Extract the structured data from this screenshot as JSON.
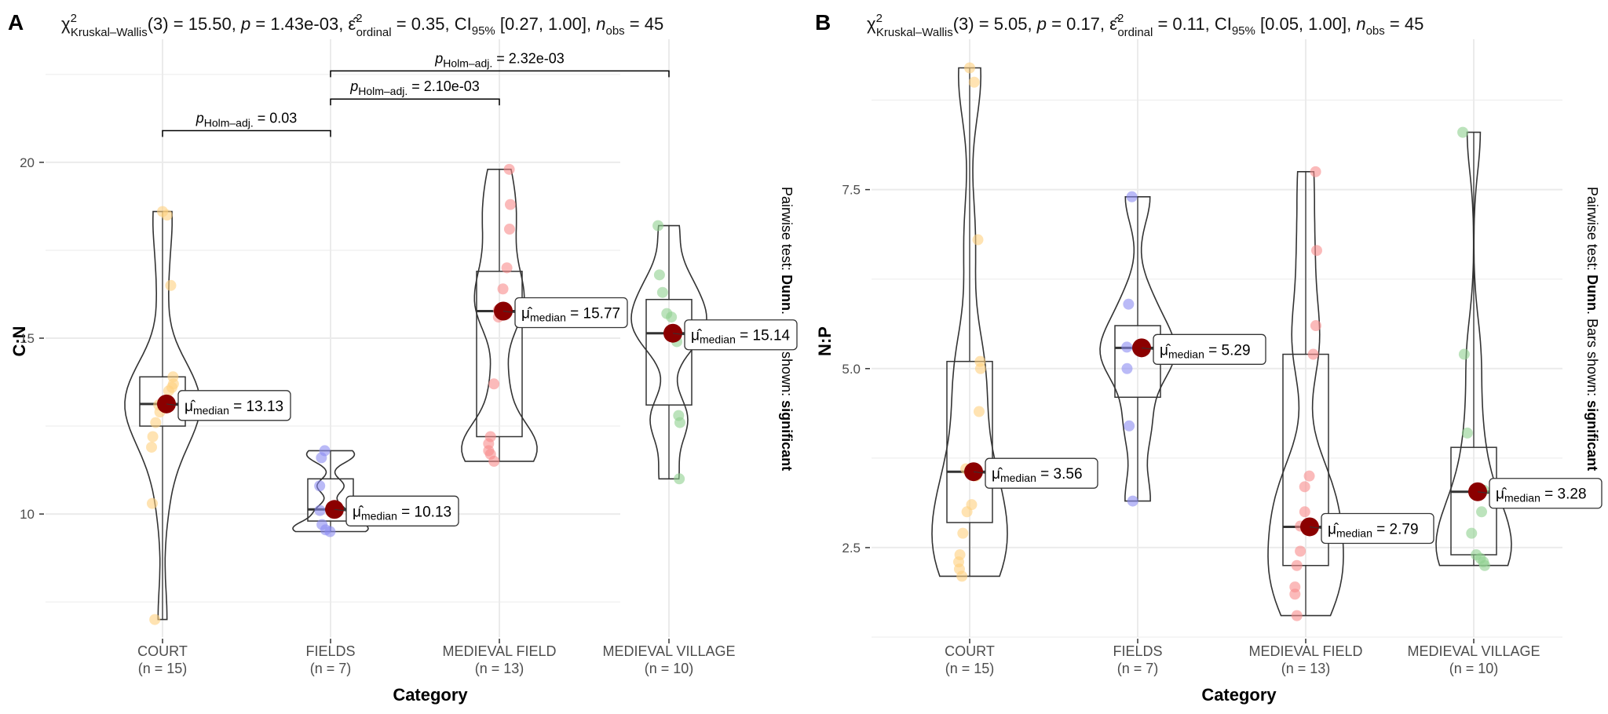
{
  "colors": {
    "grid": "#ebebeb",
    "court": "#ffd17f",
    "fields": "#8c8cf2",
    "medieval_field": "#f88c8c",
    "medieval_village": "#8fd08f",
    "median_dot": "#8b0000",
    "outline": "#333333"
  },
  "side_label": {
    "prefix": "Pairwise test: ",
    "test": "Dunn",
    "mid": ". Bars shown: ",
    "shown": "significant"
  },
  "chart_data": [
    {
      "type": "violin",
      "panel": "A",
      "title": {
        "statistic": "15.50",
        "df": "3",
        "p": "1.43e-03",
        "effect": "0.35",
        "ci": "[0.27, 1.00]",
        "n_obs": "45"
      },
      "xlabel": "Category",
      "ylabel": "C:N",
      "ylim": [
        6.5,
        23.5
      ],
      "yticks": [
        10,
        15,
        20
      ],
      "categories": [
        "COURT",
        "FIELDS",
        "MEDIEVAL FIELD",
        "MEDIEVAL VILLAGE"
      ],
      "n_labels": [
        "(n = 15)",
        "(n = 7)",
        "(n = 13)",
        "(n = 10)"
      ],
      "series": [
        {
          "category": "COURT",
          "color_key": "court",
          "median": 13.13,
          "median_label": "13.13",
          "q1": 12.5,
          "q3": 13.9,
          "min": 7.0,
          "max": 18.6,
          "points": [
            18.6,
            18.5,
            16.5,
            13.9,
            13.7,
            13.6,
            13.5,
            13.2,
            12.9,
            12.6,
            12.2,
            11.9,
            10.3,
            7.0,
            13.1
          ]
        },
        {
          "category": "FIELDS",
          "color_key": "fields",
          "median": 10.13,
          "median_label": "10.13",
          "q1": 9.8,
          "q3": 11.0,
          "min": 9.5,
          "max": 11.8,
          "points": [
            11.8,
            11.6,
            10.8,
            10.1,
            9.7,
            9.55,
            9.5
          ]
        },
        {
          "category": "MEDIEVAL FIELD",
          "color_key": "medieval_field",
          "median": 15.77,
          "median_label": "15.77",
          "q1": 12.2,
          "q3": 16.9,
          "min": 11.5,
          "max": 19.8,
          "points": [
            19.8,
            18.8,
            18.1,
            17.0,
            16.4,
            15.8,
            13.7,
            12.2,
            12.0,
            11.8,
            11.7,
            11.5,
            15.6
          ]
        },
        {
          "category": "MEDIEVAL VILLAGE",
          "color_key": "medieval_village",
          "median": 15.14,
          "median_label": "15.14",
          "q1": 13.1,
          "q3": 16.1,
          "min": 11.0,
          "max": 18.2,
          "points": [
            18.2,
            16.8,
            16.3,
            15.7,
            15.6,
            15.1,
            12.8,
            12.6,
            11.0,
            14.9
          ]
        }
      ],
      "pairwise": [
        {
          "from": 0,
          "to": 1,
          "y": 20.9,
          "p": "0.03"
        },
        {
          "from": 1,
          "to": 2,
          "y": 21.8,
          "p": "2.10e-03"
        },
        {
          "from": 1,
          "to": 3,
          "y": 22.6,
          "p": "2.32e-03"
        }
      ]
    },
    {
      "type": "violin",
      "panel": "B",
      "title": {
        "statistic": "5.05",
        "df": "3",
        "p": "0.17",
        "effect": "0.11",
        "ci": "[0.05, 1.00]",
        "n_obs": "45"
      },
      "xlabel": "Category",
      "ylabel": "N:P",
      "ylim": [
        1.25,
        9.6
      ],
      "yticks": [
        2.5,
        5.0,
        7.5
      ],
      "ytick_labels": [
        "2.5",
        "5.0",
        "7.5"
      ],
      "categories": [
        "COURT",
        "FIELDS",
        "MEDIEVAL FIELD",
        "MEDIEVAL VILLAGE"
      ],
      "n_labels": [
        "(n = 15)",
        "(n = 7)",
        "(n = 13)",
        "(n = 10)"
      ],
      "series": [
        {
          "category": "COURT",
          "color_key": "court",
          "median": 3.56,
          "median_label": "3.56",
          "q1": 2.85,
          "q3": 5.1,
          "min": 2.1,
          "max": 9.2,
          "points": [
            9.2,
            9.0,
            6.8,
            5.1,
            5.0,
            4.4,
            3.5,
            3.1,
            3.0,
            2.7,
            2.4,
            2.3,
            2.2,
            2.1,
            3.6
          ]
        },
        {
          "category": "FIELDS",
          "color_key": "fields",
          "median": 5.29,
          "median_label": "5.29",
          "q1": 4.6,
          "q3": 5.6,
          "min": 3.15,
          "max": 7.4,
          "points": [
            7.4,
            5.9,
            5.3,
            5.0,
            4.2,
            3.15,
            5.29
          ]
        },
        {
          "category": "MEDIEVAL FIELD",
          "color_key": "medieval_field",
          "median": 2.79,
          "median_label": "2.79",
          "q1": 2.25,
          "q3": 5.2,
          "min": 1.55,
          "max": 7.75,
          "points": [
            7.75,
            6.65,
            5.6,
            5.2,
            3.5,
            3.35,
            2.45,
            2.25,
            1.95,
            1.85,
            1.55,
            2.8,
            3.0
          ]
        },
        {
          "category": "MEDIEVAL VILLAGE",
          "color_key": "medieval_village",
          "median": 3.28,
          "median_label": "3.28",
          "q1": 2.4,
          "q3": 3.9,
          "min": 2.25,
          "max": 8.3,
          "points": [
            8.3,
            5.2,
            4.1,
            2.7,
            2.4,
            2.35,
            2.3,
            2.25,
            3.3,
            3.0
          ]
        }
      ],
      "pairwise": []
    }
  ]
}
